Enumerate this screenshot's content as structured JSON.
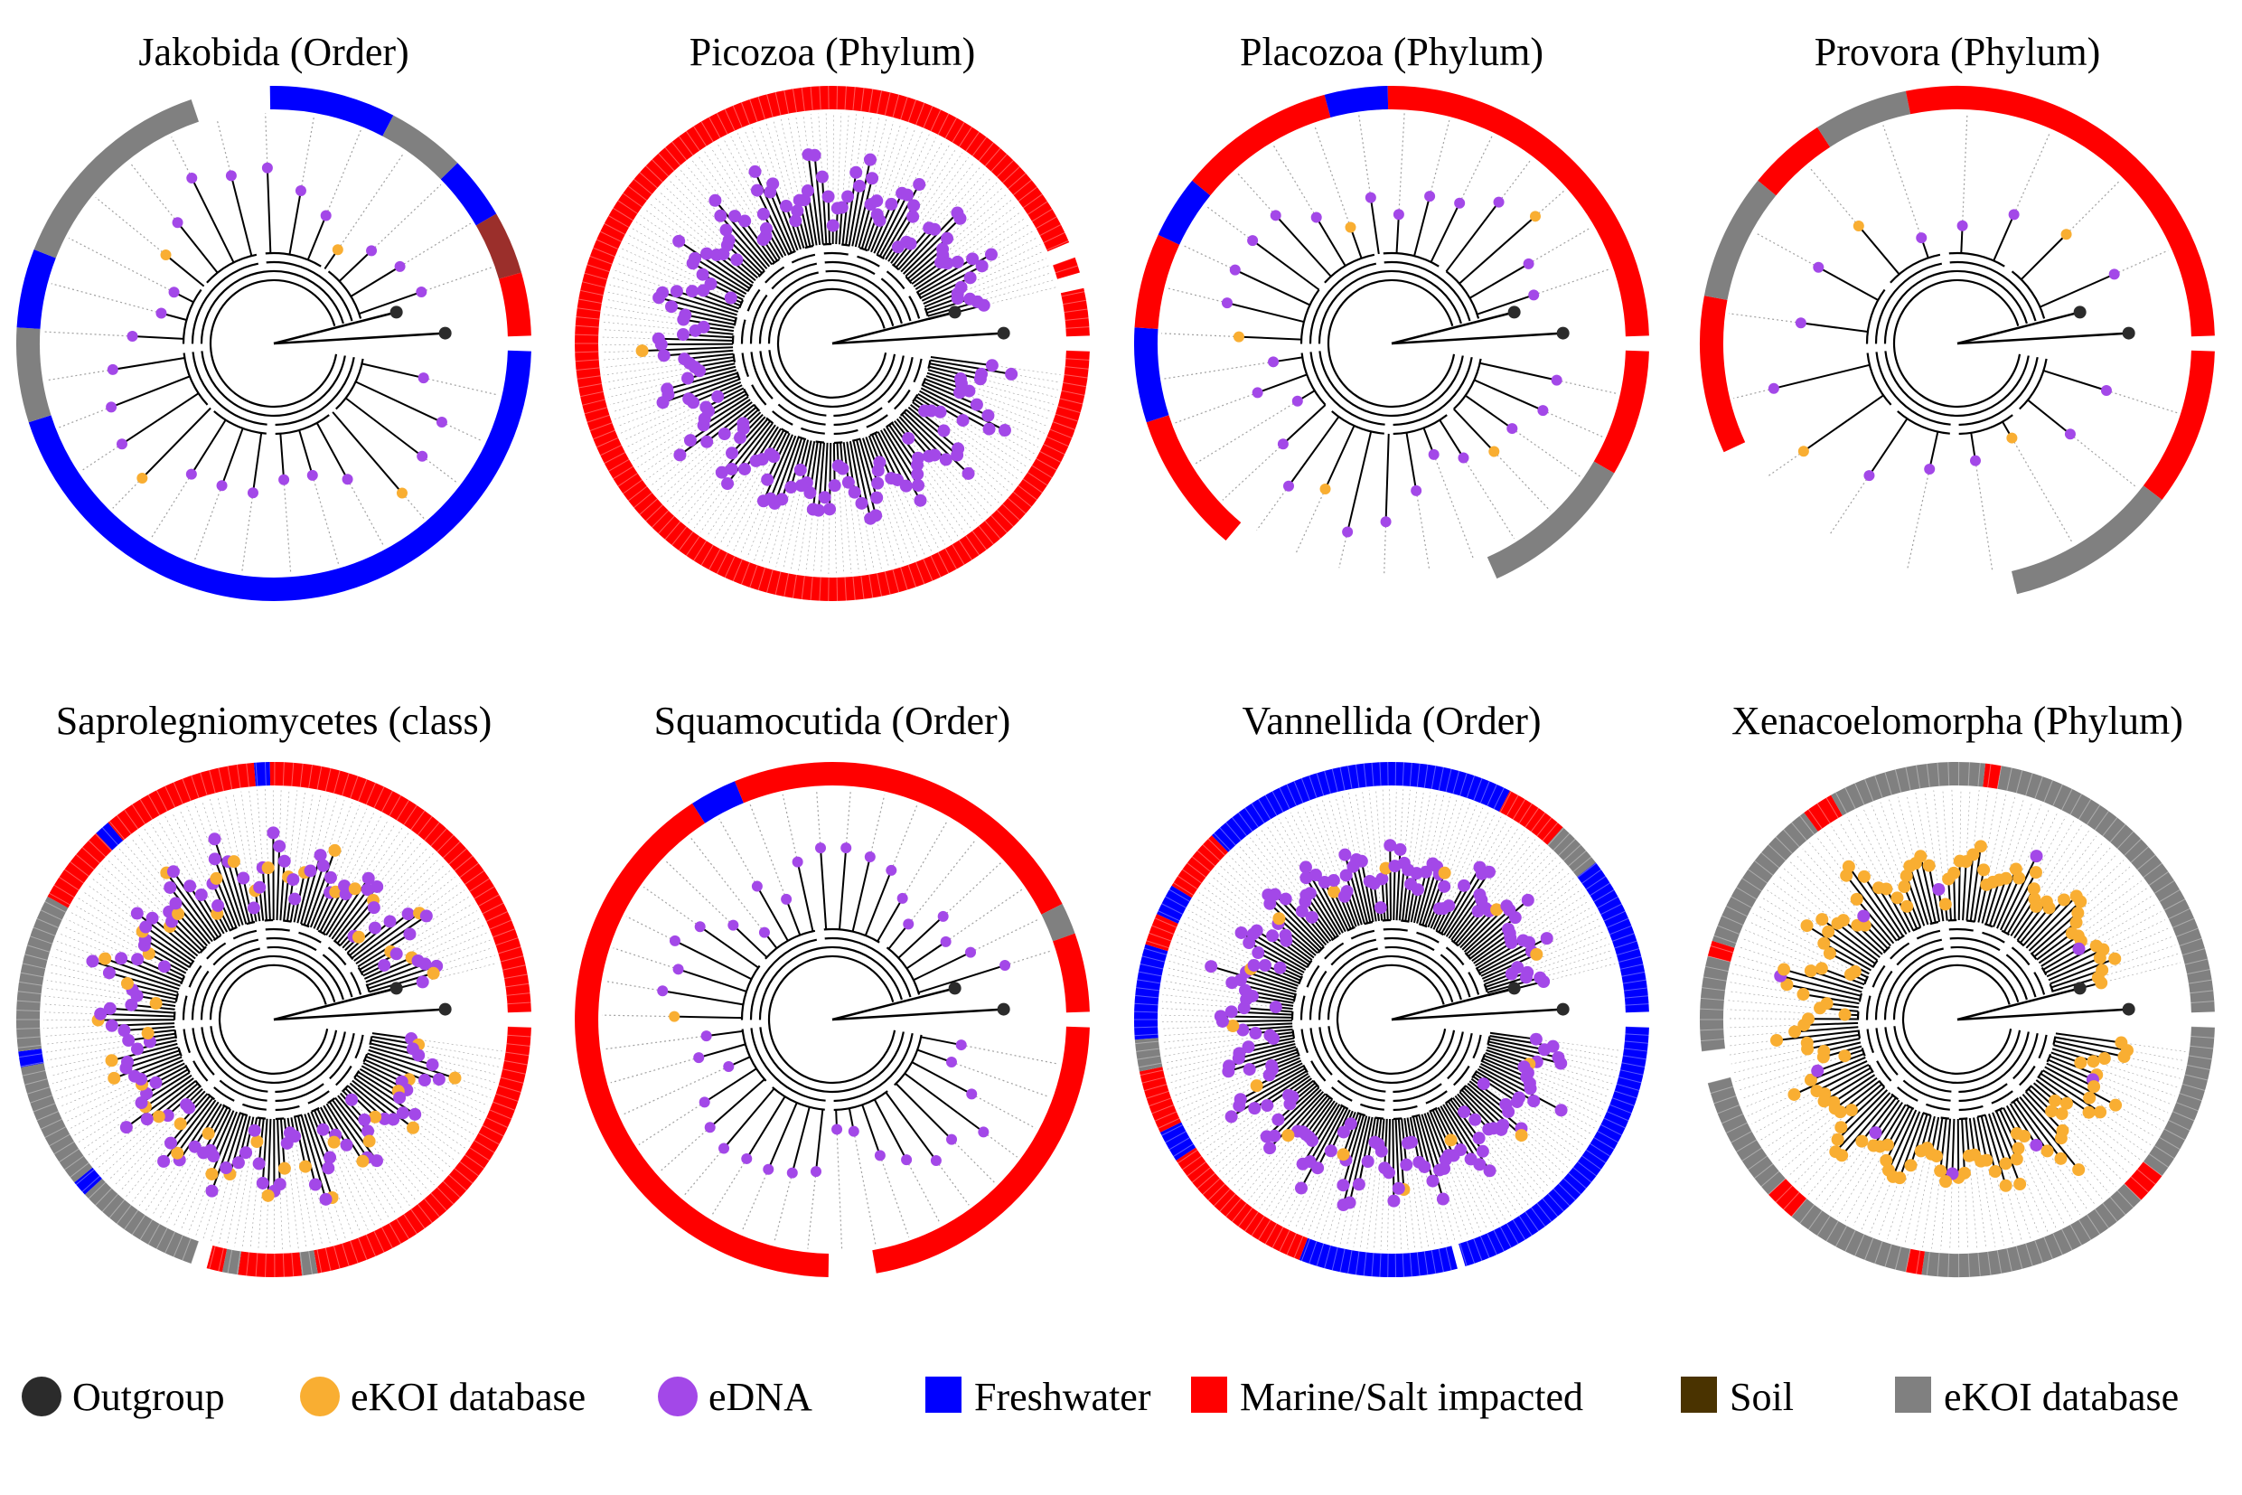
{
  "figure": {
    "colors": {
      "outgroup": "#2b2b2b",
      "ekoi_tip": "#f9ae32",
      "edna": "#a348e8",
      "freshwater": "#0000ff",
      "marine": "#ff0000",
      "soil": "#4a3300",
      "ekoi_ring": "#808080",
      "dark_red": "#9b2f2b",
      "branch": "#000000",
      "guide": "#a0a0a0"
    },
    "panels": [
      {
        "id": "jakobida",
        "title": "Jakobida (Order)",
        "n_tips": 28,
        "ekoi_tips": 4,
        "sparse": true,
        "ring": [
          [
            "freshwater",
            0.45
          ],
          [
            "ekoi_ring",
            0.06
          ],
          [
            "freshwater",
            0.05
          ],
          [
            "ekoi_ring",
            0.14
          ],
          [
            "gap",
            0.05
          ],
          [
            "freshwater",
            0.08
          ],
          [
            "ekoi_ring",
            0.05
          ],
          [
            "freshwater",
            0.04
          ],
          [
            "dark_red",
            0.04
          ],
          [
            "marine",
            0.04
          ]
        ]
      },
      {
        "id": "picozoa",
        "title": "Picozoa (Phylum)",
        "n_tips": 180,
        "ekoi_tips": 1,
        "sparse": false,
        "ring": [
          [
            "marine",
            0.94
          ],
          [
            "gap",
            0.01
          ],
          [
            "marine",
            0.01
          ],
          [
            "gap",
            0.01
          ],
          [
            "marine",
            0.03
          ]
        ]
      },
      {
        "id": "placozoa",
        "title": "Placozoa (Phylum)",
        "n_tips": 30,
        "ekoi_tips": 5,
        "sparse": true,
        "ring": [
          [
            "marine",
            0.08
          ],
          [
            "ekoi_ring",
            0.1
          ],
          [
            "gap",
            0.18
          ],
          [
            "marine",
            0.09
          ],
          [
            "freshwater",
            0.06
          ],
          [
            "marine",
            0.06
          ],
          [
            "freshwater",
            0.04
          ],
          [
            "marine",
            0.1
          ],
          [
            "freshwater",
            0.04
          ],
          [
            "marine",
            0.25
          ]
        ]
      },
      {
        "id": "provora",
        "title": "Provora (Phylum)",
        "n_tips": 16,
        "ekoi_tips": 4,
        "sparse": true,
        "ring": [
          [
            "marine",
            0.1
          ],
          [
            "ekoi_ring",
            0.11
          ],
          [
            "gap",
            0.22
          ],
          [
            "marine",
            0.1
          ],
          [
            "ekoi_ring",
            0.08
          ],
          [
            "marine",
            0.05
          ],
          [
            "ekoi_ring",
            0.06
          ],
          [
            "marine",
            0.28
          ]
        ]
      },
      {
        "id": "saprolegniomycetes",
        "title": "Saprolegniomycetes (class)",
        "n_tips": 170,
        "ekoi_tips": 50,
        "sparse": false,
        "ring": [
          [
            "marine",
            0.22
          ],
          [
            "ekoi_ring",
            0.01
          ],
          [
            "marine",
            0.04
          ],
          [
            "ekoi_ring",
            0.01
          ],
          [
            "marine",
            0.01
          ],
          [
            "gap",
            0.01
          ],
          [
            "ekoi_ring",
            0.08
          ],
          [
            "freshwater",
            0.01
          ],
          [
            "ekoi_ring",
            0.08
          ],
          [
            "freshwater",
            0.01
          ],
          [
            "ekoi_ring",
            0.1
          ],
          [
            "marine",
            0.05
          ],
          [
            "freshwater",
            0.01
          ],
          [
            "marine",
            0.1
          ],
          [
            "freshwater",
            0.01
          ],
          [
            "marine",
            0.25
          ]
        ]
      },
      {
        "id": "squamocutida",
        "title": "Squamocutida (Order)",
        "n_tips": 40,
        "ekoi_tips": 1,
        "sparse": true,
        "ring": [
          [
            "marine",
            0.22
          ],
          [
            "gap",
            0.03
          ],
          [
            "marine",
            0.41
          ],
          [
            "freshwater",
            0.03
          ],
          [
            "marine",
            0.24
          ],
          [
            "ekoi_ring",
            0.02
          ],
          [
            "marine",
            0.05
          ]
        ]
      },
      {
        "id": "vannellida",
        "title": "Vannellida (Order)",
        "n_tips": 200,
        "ekoi_tips": 15,
        "sparse": false,
        "ring": [
          [
            "freshwater",
            0.2
          ],
          [
            "gap",
            0.005
          ],
          [
            "freshwater",
            0.1
          ],
          [
            "marine",
            0.1
          ],
          [
            "freshwater",
            0.02
          ],
          [
            "marine",
            0.04
          ],
          [
            "ekoi_ring",
            0.02
          ],
          [
            "freshwater",
            0.06
          ],
          [
            "marine",
            0.02
          ],
          [
            "freshwater",
            0.02
          ],
          [
            "marine",
            0.04
          ],
          [
            "freshwater",
            0.2
          ],
          [
            "marine",
            0.04
          ],
          [
            "ekoi_ring",
            0.03
          ],
          [
            "freshwater",
            0.1
          ]
        ]
      },
      {
        "id": "xenacoelomorpha",
        "title": "Xenacoelomorpha (Phylum)",
        "n_tips": 150,
        "ekoi_tips": 140,
        "sparse": false,
        "ring": [
          [
            "ekoi_ring",
            0.1
          ],
          [
            "marine",
            0.02
          ],
          [
            "ekoi_ring",
            0.15
          ],
          [
            "marine",
            0.01
          ],
          [
            "ekoi_ring",
            0.08
          ],
          [
            "marine",
            0.02
          ],
          [
            "ekoi_ring",
            0.08
          ],
          [
            "gap",
            0.02
          ],
          [
            "ekoi_ring",
            0.06
          ],
          [
            "marine",
            0.01
          ],
          [
            "ekoi_ring",
            0.1
          ],
          [
            "marine",
            0.02
          ],
          [
            "ekoi_ring",
            0.1
          ],
          [
            "marine",
            0.01
          ],
          [
            "ekoi_ring",
            0.22
          ]
        ]
      }
    ],
    "legend": [
      {
        "label": "Outgroup",
        "shape": "circle",
        "color_key": "outgroup"
      },
      {
        "label": "eKOI database",
        "shape": "circle",
        "color_key": "ekoi_tip"
      },
      {
        "label": "eDNA",
        "shape": "circle",
        "color_key": "edna"
      },
      {
        "label": "Freshwater",
        "shape": "square",
        "color_key": "freshwater"
      },
      {
        "label": "Marine/Salt impacted",
        "shape": "square",
        "color_key": "marine"
      },
      {
        "label": "Soil",
        "shape": "square",
        "color_key": "soil"
      },
      {
        "label": "eKOI database",
        "shape": "square",
        "color_key": "ekoi_ring"
      }
    ]
  }
}
